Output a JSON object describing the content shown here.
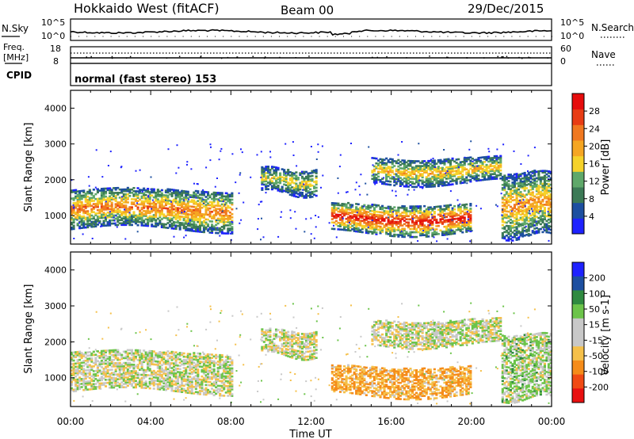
{
  "header": {
    "radar": "Hokkaido West (fitACF)",
    "beam": "Beam 00",
    "date": "29/Dec/2015"
  },
  "noise_panel": {
    "left_label": "N.Sky",
    "right_label": "N.Search",
    "ticks": [
      "10^5",
      "10^0"
    ]
  },
  "freq_panel": {
    "left_label_line1": "Freq.",
    "left_label_line2": "[MHz]",
    "left_ticks": [
      "18",
      "8"
    ],
    "right_label": "Nave",
    "right_ticks": [
      "60",
      "0"
    ]
  },
  "cpid_panel": {
    "label": "CPID",
    "text": "normal (fast stereo) 153"
  },
  "colors": {
    "power": [
      "#1e22ff",
      "#1d4fa0",
      "#3c7a56",
      "#5fa86a",
      "#f5d22a",
      "#f5a623",
      "#f07820",
      "#e83c14",
      "#e60c0c"
    ],
    "velocity": [
      "#e81010",
      "#f04a14",
      "#f58c1a",
      "#f5c04a",
      "#c8c8c8",
      "#c8c8c8",
      "#6cc44a",
      "#2f8a40",
      "#1d4fa0",
      "#1e22ff"
    ]
  },
  "chart_data": [
    {
      "type": "heatmap",
      "name": "power",
      "ylabel": "Slant Range [km]",
      "yticks": [
        1000,
        2000,
        3000,
        4000
      ],
      "ylim": [
        200,
        4500
      ],
      "xlabel": "Time UT",
      "xticks": [
        "00:00",
        "04:00",
        "08:00",
        "12:00",
        "16:00",
        "20:00",
        "00:00"
      ],
      "xlim_hours": [
        0,
        24
      ],
      "colorbar_label": "Power [dB]",
      "colorbar_ticks": [
        "4",
        "8",
        "12",
        "16",
        "20",
        "24",
        "28"
      ],
      "colorbar_range": [
        0,
        30
      ],
      "echo_regions": [
        {
          "t": [
            0.0,
            8.0
          ],
          "range_km": [
            600,
            1700
          ],
          "peak_db": 22
        },
        {
          "t": [
            9.5,
            12.2
          ],
          "range_km": [
            1600,
            2300
          ],
          "peak_db": 16
        },
        {
          "t": [
            13.0,
            20.0
          ],
          "range_km": [
            500,
            1300
          ],
          "peak_db": 28
        },
        {
          "t": [
            15.0,
            21.5
          ],
          "range_km": [
            1900,
            2600
          ],
          "peak_db": 18
        },
        {
          "t": [
            21.5,
            24.0
          ],
          "range_km": [
            400,
            2200
          ],
          "peak_db": 20
        }
      ]
    },
    {
      "type": "heatmap",
      "name": "velocity",
      "ylabel": "Slant Range [km]",
      "yticks": [
        1000,
        2000,
        3000,
        4000
      ],
      "ylim": [
        200,
        4500
      ],
      "xlabel": "Time UT",
      "xticks": [
        "00:00",
        "04:00",
        "08:00",
        "12:00",
        "16:00",
        "20:00",
        "00:00"
      ],
      "xlim_hours": [
        0,
        24
      ],
      "colorbar_label": "Velocity [m s-1]",
      "colorbar_ticks": [
        "200",
        "100",
        "50",
        "15",
        "-15",
        "-50",
        "-100",
        "-200"
      ],
      "colorbar_range": [
        -250,
        250
      ],
      "echo_regions": [
        {
          "t": [
            0.0,
            8.0
          ],
          "range_km": [
            600,
            1700
          ],
          "typical_velocity": 0
        },
        {
          "t": [
            9.5,
            12.2
          ],
          "range_km": [
            1600,
            2300
          ],
          "typical_velocity": 0
        },
        {
          "t": [
            13.0,
            20.0
          ],
          "range_km": [
            500,
            1300
          ],
          "typical_velocity": -50
        },
        {
          "t": [
            15.0,
            21.5
          ],
          "range_km": [
            1900,
            2600
          ],
          "typical_velocity": 0
        },
        {
          "t": [
            21.5,
            24.0
          ],
          "range_km": [
            400,
            2200
          ],
          "typical_velocity": 15
        }
      ]
    }
  ]
}
